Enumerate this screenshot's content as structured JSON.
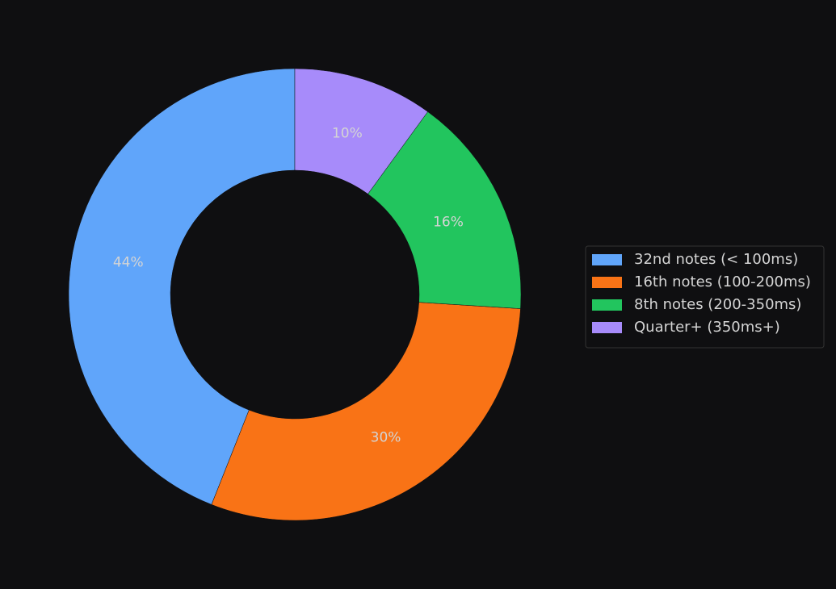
{
  "chart_data": {
    "type": "donut",
    "categories": [
      "32nd notes (< 100ms)",
      "16th notes (100-200ms)",
      "8th notes (200-350ms)",
      "Quarter+ (350ms+)"
    ],
    "values": [
      44,
      30,
      16,
      10
    ],
    "value_labels": [
      "44%",
      "30%",
      "16%",
      "10%"
    ],
    "colors": [
      "#60a5fa",
      "#f97316",
      "#22c55e",
      "#a78bfa"
    ],
    "legend": "right"
  }
}
